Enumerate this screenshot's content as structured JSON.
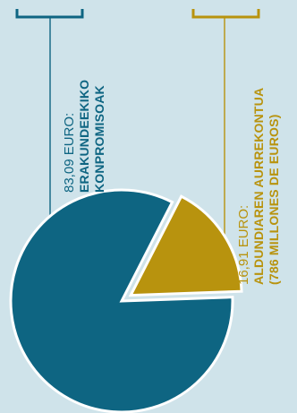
{
  "chart_data": {
    "type": "pie",
    "currency": "EURO",
    "slices": [
      {
        "key": "institutional",
        "value": 83.09,
        "amount_label": "83,09 EURO:",
        "label_lines": [
          "ERAKUNDEEKIKO",
          "KONPROMISOAK"
        ],
        "color": "#0e6582"
      },
      {
        "key": "budget",
        "value": 16.91,
        "amount_label": "16,91 EURO:",
        "label_lines": [
          "ALDUNDIAREN AURREKONTUA",
          "(786 MILLONES DE EUROS)"
        ],
        "color": "#b8930e",
        "exploded": true
      }
    ]
  },
  "colors": {
    "background": "#cfe3ea",
    "primary": "#0e6582",
    "accent": "#b8930e",
    "separator": "#ffffff"
  }
}
